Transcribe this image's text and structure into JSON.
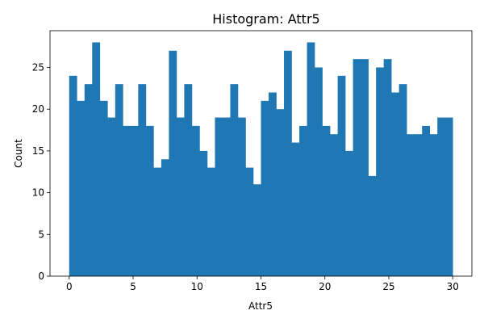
{
  "chart_data": {
    "type": "bar",
    "title": "Histogram: Attr5",
    "xlabel": "Attr5",
    "ylabel": "Count",
    "xlim": [
      -1.5,
      31.5
    ],
    "ylim": [
      0,
      29.4
    ],
    "bin_range": [
      0,
      30
    ],
    "bin_count": 50,
    "values": [
      24,
      21,
      23,
      28,
      21,
      19,
      23,
      18,
      18,
      23,
      18,
      13,
      14,
      27,
      19,
      23,
      18,
      15,
      13,
      19,
      19,
      23,
      19,
      13,
      11,
      21,
      22,
      20,
      27,
      16,
      18,
      28,
      25,
      18,
      17,
      24,
      15,
      26,
      26,
      12,
      25,
      26,
      22,
      23,
      17,
      17,
      18,
      17,
      19,
      19
    ],
    "x_ticks": [
      0,
      5,
      10,
      15,
      20,
      25,
      30
    ],
    "y_ticks": [
      0,
      5,
      10,
      15,
      20,
      25
    ],
    "bar_color": "#1f77b4",
    "grid": false,
    "legend": "none"
  }
}
